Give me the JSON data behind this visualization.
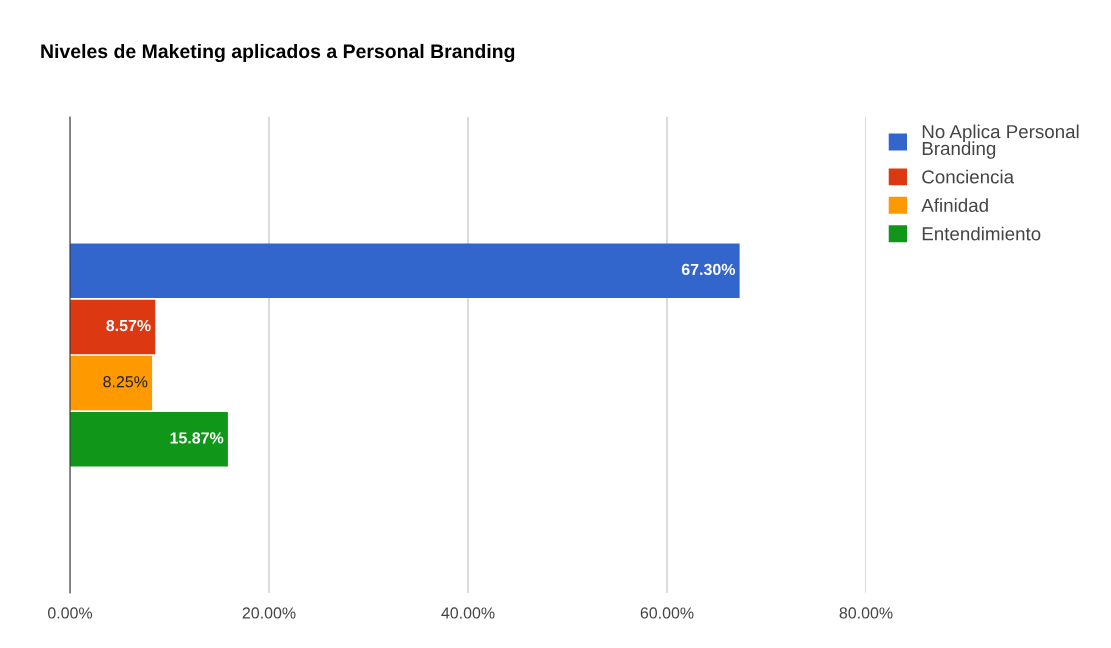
{
  "chart_data": {
    "type": "bar",
    "orientation": "horizontal",
    "title": "Niveles de Maketing aplicados a Personal Branding",
    "categories": [
      null
    ],
    "series": [
      {
        "name": "No Aplica Personal Branding",
        "color": "#3366cc",
        "values": [
          67.3
        ],
        "value_labels": [
          "67.30%"
        ]
      },
      {
        "name": "Conciencia",
        "color": "#dc3912",
        "values": [
          8.57
        ],
        "value_labels": [
          "8.57%"
        ]
      },
      {
        "name": "Afinidad",
        "color": "#ff9900",
        "values": [
          8.25
        ],
        "value_labels": [
          "8.25%"
        ]
      },
      {
        "name": "Entendimiento",
        "color": "#109618",
        "values": [
          15.87
        ],
        "value_labels": [
          "15.87%"
        ]
      }
    ],
    "xlim": [
      0,
      80
    ],
    "xticks": [
      {
        "value": 0,
        "label": "0.00%"
      },
      {
        "value": 20,
        "label": "20.00%"
      },
      {
        "value": 40,
        "label": "40.00%"
      },
      {
        "value": 60,
        "label": "60.00%"
      },
      {
        "value": 80,
        "label": "80.00%"
      }
    ],
    "grid": "x",
    "legend": "top right",
    "tick_labels": "x"
  }
}
